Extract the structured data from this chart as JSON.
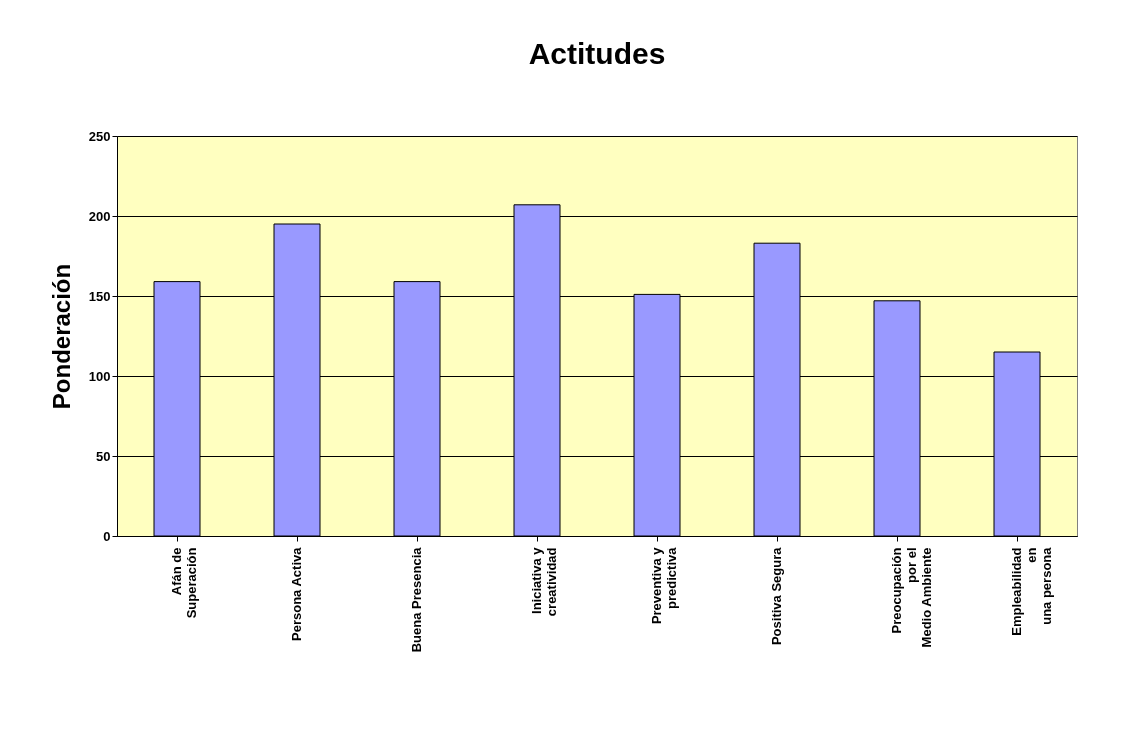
{
  "chart_data": {
    "type": "bar",
    "title": "Actitudes",
    "ylabel": "Ponderación",
    "categories": [
      "Afán de\nSuperación",
      "Persona Activa",
      "Buena Presencia",
      "Iniciativa y\ncreatividad",
      "Preventiva y\npredictiva",
      "Positiva Segura",
      "Preocupación\npor el\nMedio Ambiente",
      "Empleabilidad\nen\nuna persona"
    ],
    "values": [
      159,
      195,
      159,
      207,
      151,
      183,
      147,
      115
    ],
    "color": "#9999ff",
    "ylim": [
      0,
      250
    ],
    "yticks": [
      0,
      50,
      100,
      150,
      200,
      250
    ],
    "grid": "y"
  }
}
